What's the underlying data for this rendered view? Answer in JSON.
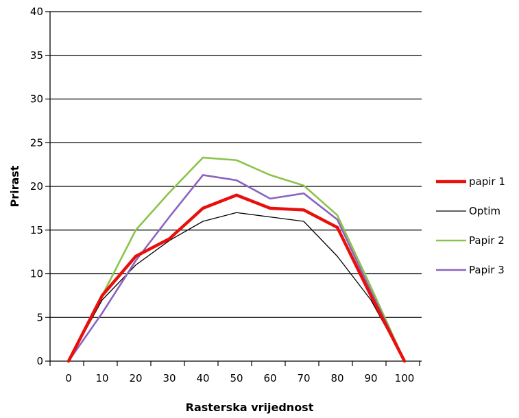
{
  "chart_data": {
    "type": "line",
    "xlabel": "Rasterska vrijednost",
    "ylabel": "Prirast",
    "categories": [
      "0",
      "10",
      "20",
      "30",
      "40",
      "50",
      "60",
      "70",
      "80",
      "90",
      "100"
    ],
    "yticks": [
      "0",
      "5",
      "10",
      "15",
      "20",
      "25",
      "30",
      "35",
      "40"
    ],
    "ylim": [
      0,
      40
    ],
    "grid": true,
    "legend_position": "right",
    "series": [
      {
        "name": "papir 1",
        "color": "#e8100c",
        "width": "thick",
        "values": [
          0,
          7.5,
          12,
          14,
          17.5,
          19,
          17.5,
          17.3,
          15.3,
          7.5,
          0
        ]
      },
      {
        "name": "Optim",
        "color": "#000000",
        "width": "thin",
        "values": [
          0,
          7,
          11,
          13.8,
          16,
          17,
          16.5,
          16,
          12,
          7,
          0
        ]
      },
      {
        "name": "Papir 2",
        "color": "#8bc34a",
        "width": "medium",
        "values": [
          0,
          7.5,
          15,
          19.3,
          23.3,
          23,
          21.3,
          20.1,
          16.7,
          8.5,
          0
        ]
      },
      {
        "name": "Papir 3",
        "color": "#8a64c0",
        "width": "medium",
        "values": [
          0,
          5.5,
          11.5,
          16.5,
          21.3,
          20.7,
          18.6,
          19.2,
          16.2,
          8,
          0
        ]
      }
    ]
  }
}
